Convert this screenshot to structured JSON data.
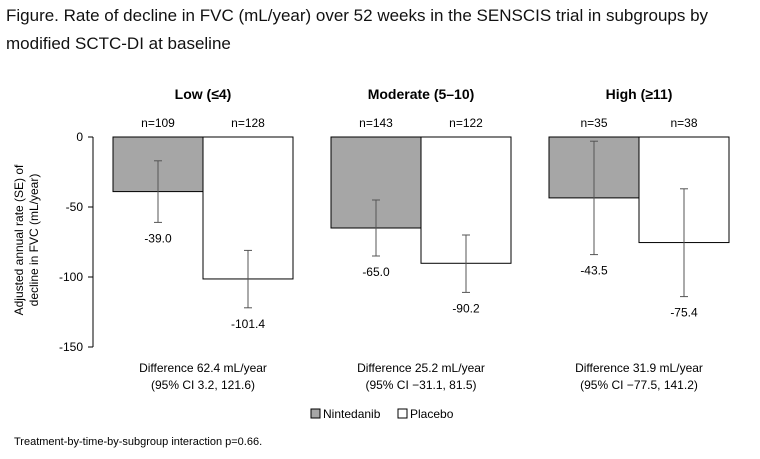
{
  "title": "Figure. Rate of decline in FVC (mL/year) over 52 weeks in the SENSCIS trial in subgroups by modified SCTC-DI at baseline",
  "footnote": "Treatment-by-time-by-subgroup interaction p=0.66.",
  "chart_data": {
    "type": "bar",
    "ylabel": "Adjusted annual rate (SE) of decline in FVC (mL/year)",
    "ylabel_lines": [
      "Adjusted annual rate (SE) of",
      "decline in FVC (mL/year)"
    ],
    "ylim": [
      -150,
      0
    ],
    "yticks": [
      0,
      -50,
      -100,
      -150
    ],
    "grid": false,
    "legend_position": "bottom",
    "colors": {
      "Nintedanib": "#a6a6a6",
      "Placebo": "#ffffff",
      "stroke": "#000000",
      "error": "#555555"
    },
    "series": [
      {
        "name": "Nintedanib"
      },
      {
        "name": "Placebo"
      }
    ],
    "groups": [
      {
        "label": "Low (≤4)",
        "bars": [
          {
            "series": "Nintedanib",
            "n": "n=109",
            "value": -39.0,
            "label": "-39.0",
            "err_low": -61,
            "err_high": -17
          },
          {
            "series": "Placebo",
            "n": "n=128",
            "value": -101.4,
            "label": "-101.4",
            "err_low": -122,
            "err_high": -81
          }
        ],
        "difference": [
          "Difference 62.4 mL/year",
          "(95% CI 3.2, 121.6)"
        ]
      },
      {
        "label": "Moderate (5–10)",
        "bars": [
          {
            "series": "Nintedanib",
            "n": "n=143",
            "value": -65.0,
            "label": "-65.0",
            "err_low": -85,
            "err_high": -45
          },
          {
            "series": "Placebo",
            "n": "n=122",
            "value": -90.2,
            "label": "-90.2",
            "err_low": -111,
            "err_high": -70
          }
        ],
        "difference": [
          "Difference 25.2 mL/year",
          "(95% CI −31.1, 81.5)"
        ]
      },
      {
        "label": "High (≥11)",
        "bars": [
          {
            "series": "Nintedanib",
            "n": "n=35",
            "value": -43.5,
            "label": "-43.5",
            "err_low": -84,
            "err_high": -3
          },
          {
            "series": "Placebo",
            "n": "n=38",
            "value": -75.4,
            "label": "-75.4",
            "err_low": -114,
            "err_high": -37
          }
        ],
        "difference": [
          "Difference 31.9 mL/year",
          "(95% CI −77.5, 141.2)"
        ]
      }
    ]
  }
}
